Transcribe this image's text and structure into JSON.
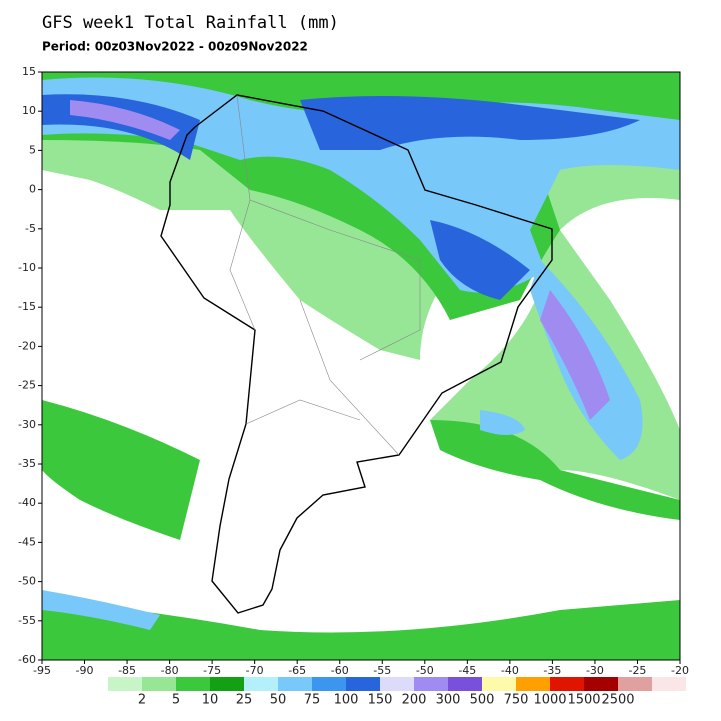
{
  "title": "GFS week1 Total Rainfall (mm)",
  "period": "Period: 00z03Nov2022 - 00z09Nov2022",
  "map": {
    "lat_ticks": [
      15,
      10,
      5,
      0,
      -5,
      -10,
      -15,
      -20,
      -25,
      -30,
      -35,
      -40,
      -45,
      -50,
      -55,
      -60
    ],
    "lon_ticks": [
      -95,
      -90,
      -85,
      -80,
      -75,
      -70,
      -65,
      -60,
      -55,
      -50,
      -45,
      -40,
      -35,
      -30,
      -25,
      -20
    ]
  },
  "legend": {
    "levels": [
      2,
      5,
      10,
      25,
      50,
      75,
      100,
      150,
      200,
      300,
      500,
      750,
      1000,
      1500,
      2500
    ],
    "colors": [
      "#c8f5c8",
      "#96e696",
      "#3cc83c",
      "#14a014",
      "#b4f0fa",
      "#78c8fa",
      "#3c96f0",
      "#2864dc",
      "#dcdcfa",
      "#a08cf0",
      "#7850dc",
      "#fffaaa",
      "#ffa000",
      "#e11400",
      "#a50000",
      "#e1a0a0",
      "#fae6e6"
    ]
  }
}
